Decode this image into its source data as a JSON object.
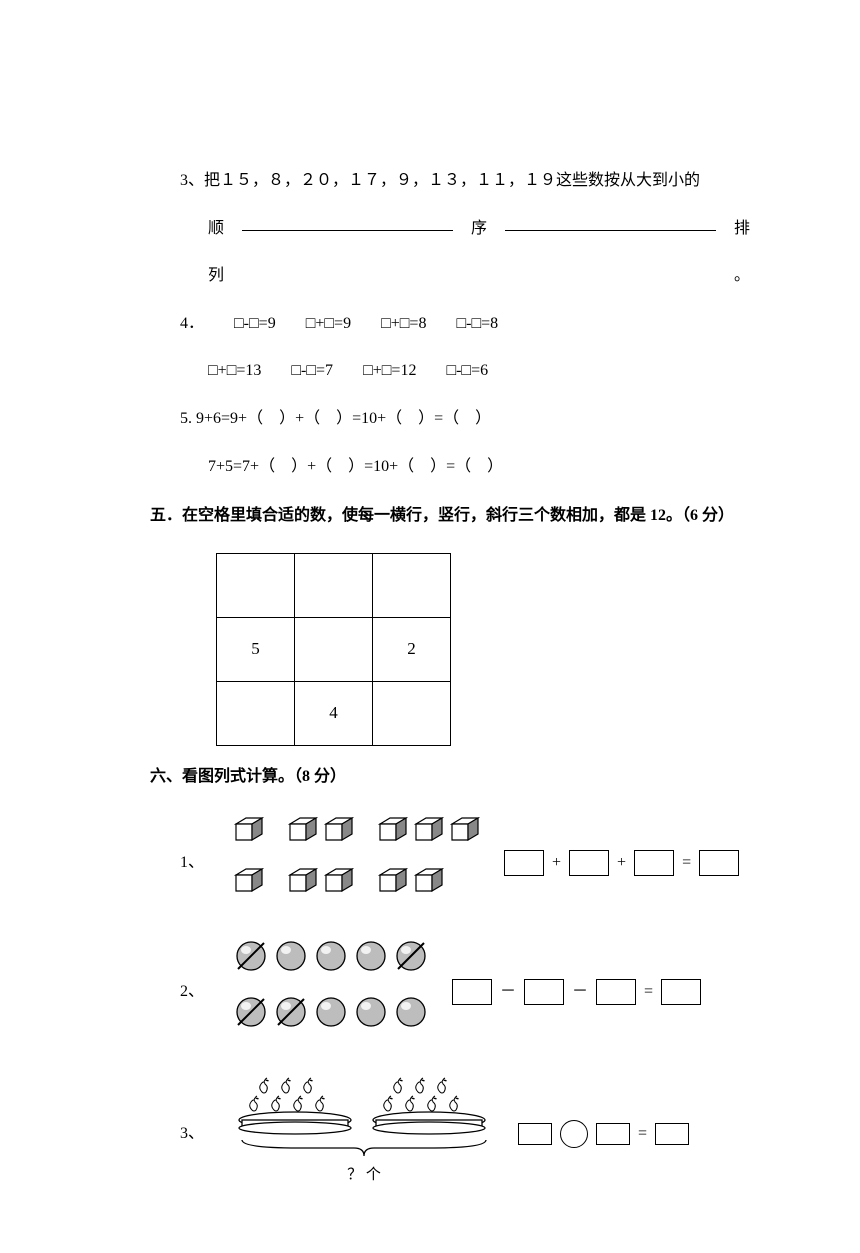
{
  "q3": {
    "numbers_text": "3、把１５，８，２０，１７，９，１３，１１，１９这些数按从大到小的",
    "shun": "顺",
    "xu": "序",
    "pai": "排",
    "lie": "列",
    "period": "。"
  },
  "q4": {
    "label": "4．",
    "row1": [
      "□-□=9",
      "□+□=9",
      "□+□=8",
      "□-□=8"
    ],
    "row2": [
      "□+□=13",
      "□-□=7",
      "□+□=12",
      "□-□=6"
    ]
  },
  "q5": {
    "line1": "5. 9+6=9+（　）+（　）=10+（　）=（　）",
    "line2": "7+5=7+（　）+（　）=10+（　）=（　）"
  },
  "section5": {
    "heading": "五．在空格里填合适的数，使每一横行，竖行，斜行三个数相加，都是 12。（6 分）",
    "grid": [
      [
        "",
        "",
        ""
      ],
      [
        "5",
        "",
        "2"
      ],
      [
        "",
        "4",
        ""
      ]
    ]
  },
  "section6": {
    "heading": "六、看图列式计算。（8 分）",
    "p1": {
      "num": "1、",
      "cube_groups": [
        [
          1,
          2,
          3
        ],
        [
          1,
          2,
          2
        ]
      ],
      "ops": [
        "+",
        "+",
        "="
      ]
    },
    "p2": {
      "num": "2、",
      "row1_strike": [
        0,
        4
      ],
      "row2_strike": [
        0,
        1
      ],
      "ops": [
        "－",
        "－",
        "="
      ]
    },
    "p3": {
      "num": "3、",
      "pears": [
        7,
        7
      ],
      "qmark": "？ 个",
      "eq_trail": "="
    }
  }
}
